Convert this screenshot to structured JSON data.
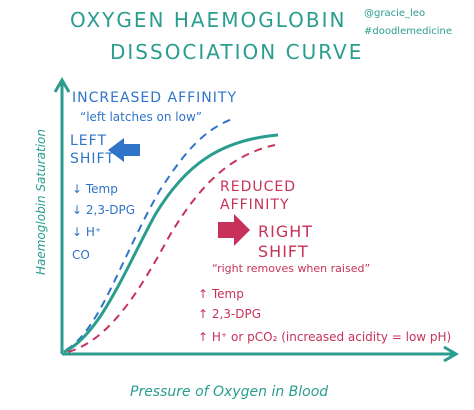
{
  "title": {
    "line1": "OXYGEN HAEMOGLOBIN",
    "line2": "DISSOCIATION CURVE"
  },
  "credits": {
    "handle": "@gracie_leo",
    "hashtag": "#doodlemedicine"
  },
  "axes": {
    "x_label": "Pressure of Oxygen in Blood",
    "y_label": "Haemoglobin Saturation"
  },
  "left_panel": {
    "heading": "INCREASED AFFINITY",
    "quote": "“left latches on low”",
    "shift_line1": "LEFT",
    "shift_line2": "SHIFT",
    "items": [
      "↓ Temp",
      "↓ 2,3-DPG",
      "↓ H⁺",
      "CO"
    ]
  },
  "right_panel": {
    "heading_line1": "REDUCED",
    "heading_line2": "AFFINITY",
    "shift_line1": "RIGHT",
    "shift_line2": "SHIFT",
    "quote": "“right removes when raised”",
    "items": [
      "↑ Temp",
      "↑ 2,3-DPG",
      "↑ H⁺ or pCO₂ (increased acidity = low pH)"
    ]
  },
  "colors": {
    "axis": "#2a9d8f",
    "left_shift": "#2f74c8",
    "right_shift": "#c8325a",
    "normal_curve": "#2a9d8f"
  }
}
